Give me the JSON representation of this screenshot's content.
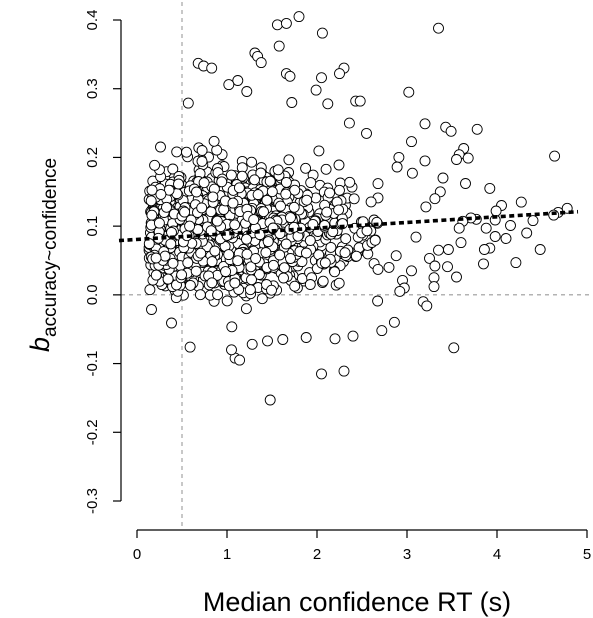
{
  "chart_data": {
    "type": "scatter",
    "title": "",
    "xlabel": "Median confidence RT (s)",
    "ylabel_main": "b",
    "ylabel_sub": "accuracy~confidence",
    "xlim": [
      0,
      5
    ],
    "ylim": [
      -0.3,
      0.4
    ],
    "x_ticks": [
      {
        "value": 0,
        "label": "0"
      },
      {
        "value": 1,
        "label": "1"
      },
      {
        "value": 2,
        "label": "2"
      },
      {
        "value": 3,
        "label": "3"
      },
      {
        "value": 4,
        "label": "4"
      },
      {
        "value": 5,
        "label": "5"
      }
    ],
    "y_ticks": [
      {
        "value": -0.3,
        "label": "-0.3"
      },
      {
        "value": -0.2,
        "label": "-0.2"
      },
      {
        "value": -0.1,
        "label": "-0.1"
      },
      {
        "value": 0.0,
        "label": "0.0"
      },
      {
        "value": 0.1,
        "label": "0.1"
      },
      {
        "value": 0.2,
        "label": "0.2"
      },
      {
        "value": 0.3,
        "label": "0.3"
      },
      {
        "value": 0.4,
        "label": "0.4"
      }
    ],
    "reference_lines": {
      "horizontal_y": 0.0,
      "vertical_x": 0.5
    },
    "trend_line": {
      "x": [
        -0.2,
        4.9
      ],
      "y": [
        0.079,
        0.121
      ]
    },
    "grid": false,
    "legend": "none",
    "points": {
      "n_dense_cloud": 1500,
      "dense_cloud_x_range": [
        0.1,
        2.7
      ],
      "dense_cloud_y_range": [
        -0.06,
        0.26
      ],
      "outliers": [
        [
          1.8,
          0.405
        ],
        [
          1.56,
          0.393
        ],
        [
          1.66,
          0.395
        ],
        [
          3.35,
          0.388
        ],
        [
          2.06,
          0.381
        ],
        [
          1.31,
          0.352
        ],
        [
          1.34,
          0.347
        ],
        [
          1.58,
          0.362
        ],
        [
          0.68,
          0.337
        ],
        [
          0.74,
          0.333
        ],
        [
          0.83,
          0.33
        ],
        [
          2.3,
          0.33
        ],
        [
          2.25,
          0.322
        ],
        [
          1.66,
          0.322
        ],
        [
          1.7,
          0.318
        ],
        [
          1.38,
          0.338
        ],
        [
          2.05,
          0.316
        ],
        [
          1.12,
          0.312
        ],
        [
          1.02,
          0.306
        ],
        [
          1.99,
          0.298
        ],
        [
          3.02,
          0.295
        ],
        [
          1.22,
          0.296
        ],
        [
          2.43,
          0.282
        ],
        [
          2.48,
          0.282
        ],
        [
          2.12,
          0.278
        ],
        [
          0.57,
          0.279
        ],
        [
          1.72,
          0.28
        ],
        [
          2.36,
          0.25
        ],
        [
          3.43,
          0.244
        ],
        [
          3.2,
          0.249
        ],
        [
          3.78,
          0.241
        ],
        [
          3.49,
          0.238
        ],
        [
          2.55,
          0.235
        ],
        [
          3.05,
          0.223
        ],
        [
          3.63,
          0.213
        ],
        [
          3.58,
          0.204
        ],
        [
          3.68,
          0.199
        ],
        [
          4.64,
          0.202
        ],
        [
          3.55,
          0.197
        ],
        [
          3.2,
          0.195
        ],
        [
          2.91,
          0.2
        ],
        [
          2.89,
          0.186
        ],
        [
          3.06,
          0.177
        ],
        [
          3.4,
          0.17
        ],
        [
          3.65,
          0.162
        ],
        [
          3.37,
          0.15
        ],
        [
          3.31,
          0.14
        ],
        [
          3.92,
          0.155
        ],
        [
          3.21,
          0.128
        ],
        [
          3.77,
          0.11
        ],
        [
          3.71,
          0.112
        ],
        [
          3.62,
          0.107
        ],
        [
          3.98,
          0.109
        ],
        [
          3.88,
          0.097
        ],
        [
          3.58,
          0.097
        ],
        [
          3.1,
          0.084
        ],
        [
          3.98,
          0.085
        ],
        [
          3.6,
          0.076
        ],
        [
          3.92,
          0.068
        ],
        [
          3.46,
          0.066
        ],
        [
          3.35,
          0.065
        ],
        [
          3.86,
          0.066
        ],
        [
          4.48,
          0.066
        ],
        [
          3.25,
          0.053
        ],
        [
          3.85,
          0.045
        ],
        [
          4.21,
          0.047
        ],
        [
          3.45,
          0.041
        ],
        [
          3.31,
          0.042
        ],
        [
          2.88,
          0.057
        ],
        [
          2.8,
          0.04
        ],
        [
          3.05,
          0.035
        ],
        [
          3.3,
          0.025
        ],
        [
          3.55,
          0.026
        ],
        [
          2.95,
          0.021
        ],
        [
          3.3,
          0.012
        ],
        [
          2.97,
          0.01
        ],
        [
          2.92,
          0.005
        ],
        [
          3.18,
          -0.01
        ],
        [
          3.22,
          -0.016
        ],
        [
          2.86,
          -0.04
        ],
        [
          2.72,
          -0.052
        ],
        [
          3.52,
          -0.077
        ],
        [
          2.05,
          -0.115
        ],
        [
          2.3,
          -0.111
        ],
        [
          1.09,
          -0.092
        ],
        [
          1.14,
          -0.095
        ],
        [
          1.05,
          -0.08
        ],
        [
          1.48,
          -0.153
        ],
        [
          0.59,
          -0.076
        ],
        [
          1.28,
          -0.072
        ],
        [
          1.45,
          -0.067
        ],
        [
          1.62,
          -0.065
        ],
        [
          1.88,
          -0.062
        ],
        [
          2.2,
          -0.064
        ],
        [
          2.4,
          -0.06
        ],
        [
          4.68,
          0.12
        ],
        [
          4.63,
          0.116
        ],
        [
          4.78,
          0.126
        ],
        [
          4.15,
          0.101
        ],
        [
          4.27,
          0.135
        ],
        [
          4.05,
          0.13
        ],
        [
          3.99,
          0.122
        ],
        [
          4.4,
          0.108
        ],
        [
          4.33,
          0.09
        ],
        [
          4.1,
          0.082
        ]
      ]
    }
  }
}
